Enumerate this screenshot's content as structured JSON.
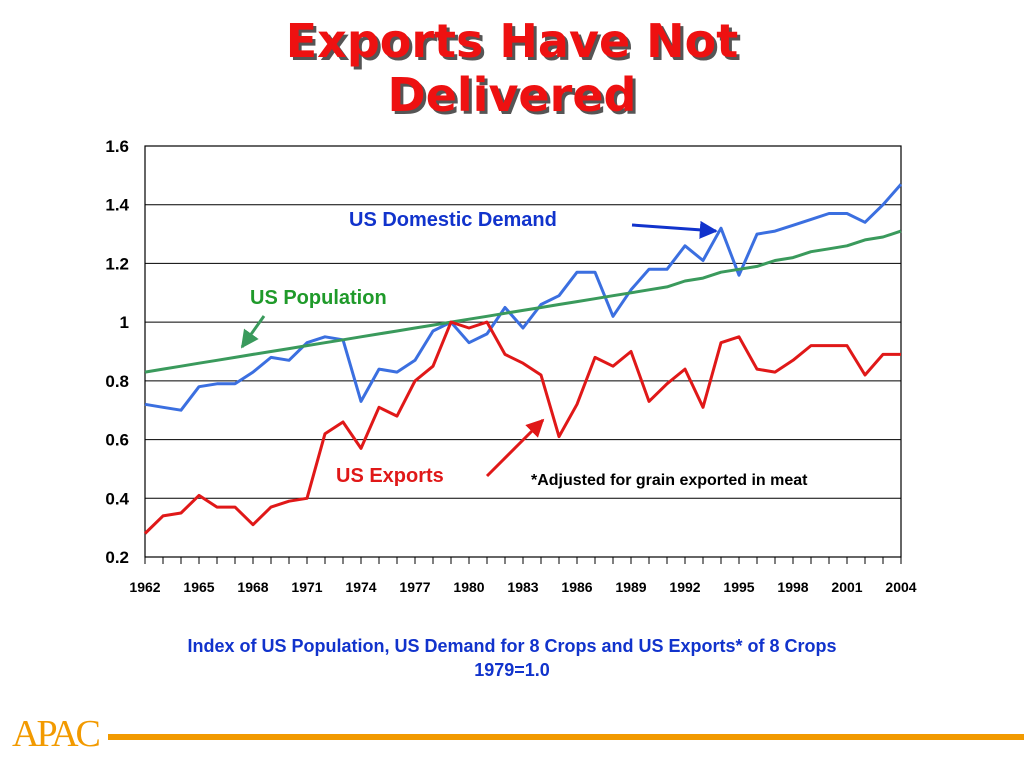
{
  "slide": {
    "title_line1": "Exports Have Not",
    "title_line2": "Delivered",
    "subtitle_line1": "Index of US Population, US Demand for 8 Crops and US Exports* of 8 Crops",
    "subtitle_line2": "1979=1.0",
    "logo_text": "APAC",
    "colors": {
      "title": "#ee1111",
      "subtitle": "#1133cc",
      "logo": "#f29a00"
    }
  },
  "chart_data": {
    "type": "line",
    "title": "",
    "xlabel": "",
    "ylabel": "",
    "ylim": [
      0.2,
      1.6
    ],
    "yticks": [
      0.2,
      0.4,
      0.6,
      0.8,
      1,
      1.2,
      1.4,
      1.6
    ],
    "ytick_labels": [
      "0.2",
      "0.4",
      "0.6",
      "0.8",
      "1",
      "1.2",
      "1.4",
      "1.6"
    ],
    "xlim": [
      1962,
      2004
    ],
    "xtick_labels": [
      "1962",
      "1965",
      "1968",
      "1971",
      "1974",
      "1977",
      "1980",
      "1983",
      "1986",
      "1989",
      "1992",
      "1995",
      "1998",
      "2001",
      "2004"
    ],
    "grid": "horizontal",
    "x": [
      1962,
      1963,
      1964,
      1965,
      1966,
      1967,
      1968,
      1969,
      1970,
      1971,
      1972,
      1973,
      1974,
      1975,
      1976,
      1977,
      1978,
      1979,
      1980,
      1981,
      1982,
      1983,
      1984,
      1985,
      1986,
      1987,
      1988,
      1989,
      1990,
      1991,
      1992,
      1993,
      1994,
      1995,
      1996,
      1997,
      1998,
      1999,
      2000,
      2001,
      2002,
      2003,
      2004
    ],
    "series": [
      {
        "name": "US Domestic Demand",
        "color": "#3b6fe0",
        "values": [
          0.72,
          0.71,
          0.7,
          0.78,
          0.79,
          0.79,
          0.83,
          0.88,
          0.87,
          0.93,
          0.95,
          0.94,
          0.73,
          0.84,
          0.83,
          0.87,
          0.97,
          1.0,
          0.93,
          0.96,
          1.05,
          0.98,
          1.06,
          1.09,
          1.17,
          1.17,
          1.02,
          1.11,
          1.18,
          1.18,
          1.26,
          1.21,
          1.32,
          1.16,
          1.3,
          1.31,
          1.33,
          1.35,
          1.37,
          1.37,
          1.34,
          1.4,
          1.47
        ]
      },
      {
        "name": "US Population",
        "color": "#3a9a5c",
        "values": [
          0.83,
          0.84,
          0.85,
          0.86,
          0.87,
          0.88,
          0.89,
          0.9,
          0.91,
          0.92,
          0.93,
          0.94,
          0.95,
          0.96,
          0.97,
          0.98,
          0.99,
          1.0,
          1.01,
          1.02,
          1.03,
          1.04,
          1.05,
          1.06,
          1.07,
          1.08,
          1.09,
          1.1,
          1.11,
          1.12,
          1.14,
          1.15,
          1.17,
          1.18,
          1.19,
          1.21,
          1.22,
          1.24,
          1.25,
          1.26,
          1.28,
          1.29,
          1.31
        ]
      },
      {
        "name": "US Exports",
        "color": "#e01818",
        "values": [
          0.28,
          0.34,
          0.35,
          0.41,
          0.37,
          0.37,
          0.31,
          0.37,
          0.39,
          0.4,
          0.62,
          0.66,
          0.57,
          0.71,
          0.68,
          0.8,
          0.85,
          1.0,
          0.98,
          1.0,
          0.89,
          0.86,
          0.82,
          0.61,
          0.72,
          0.88,
          0.85,
          0.9,
          0.73,
          0.79,
          0.84,
          0.71,
          0.93,
          0.95,
          0.84,
          0.83,
          0.87,
          0.92,
          0.92,
          0.92,
          0.82,
          0.89,
          0.89
        ]
      }
    ],
    "annotations": [
      {
        "text": "US Domestic Demand",
        "color": "#1133cc",
        "arrow_color": "#1133cc",
        "points_to_x": 1993
      },
      {
        "text": "US Population",
        "color": "#1f9a2a",
        "arrow_color": "#3a9a5c",
        "points_to_x": 1967
      },
      {
        "text": "US Exports",
        "color": "#e01818",
        "arrow_color": "#e01818",
        "points_to_x": 1984.5
      },
      {
        "text": "*Adjusted for grain exported in meat",
        "color": "#000000"
      }
    ]
  }
}
